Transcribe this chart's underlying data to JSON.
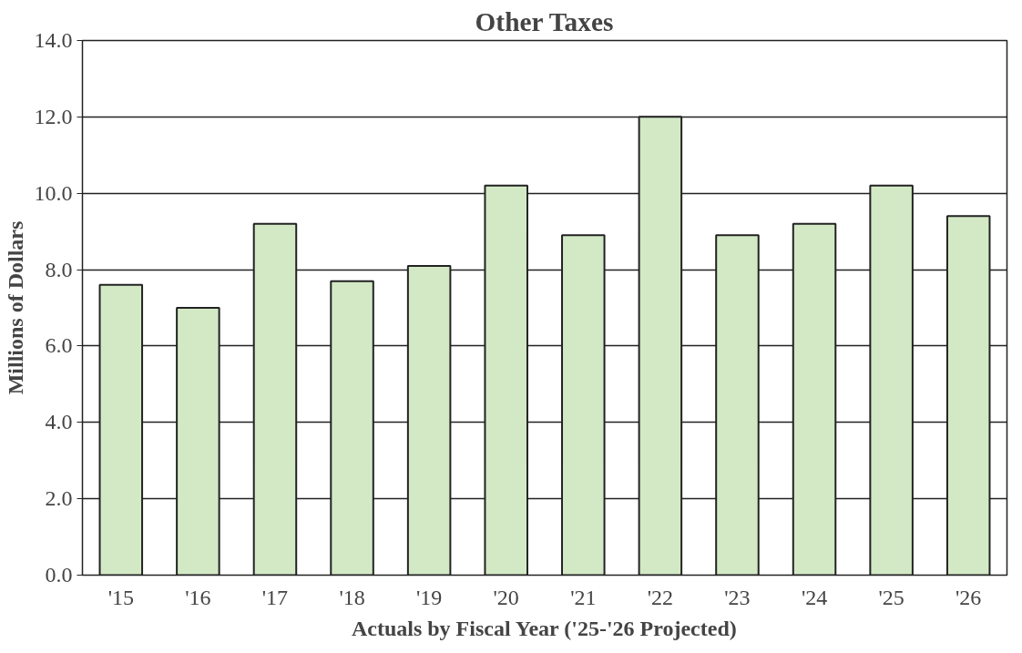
{
  "chart_data": {
    "type": "bar",
    "title": "Other Taxes",
    "xlabel": "Actuals by Fiscal Year ('25-'26 Projected)",
    "ylabel": "Millions of Dollars",
    "categories": [
      "'15",
      "'16",
      "'17",
      "'18",
      "'19",
      "'20",
      "'21",
      "'22",
      "'23",
      "'24",
      "'25",
      "'26"
    ],
    "values": [
      7.6,
      7.0,
      9.2,
      7.7,
      8.1,
      10.2,
      8.9,
      12.0,
      8.9,
      9.2,
      10.2,
      9.4
    ],
    "color": "#d3e9c6",
    "ylim": [
      0,
      14
    ],
    "yticks": [
      {
        "value": 0,
        "label": "0.0"
      },
      {
        "value": 2,
        "label": "2.0"
      },
      {
        "value": 4,
        "label": "4.0"
      },
      {
        "value": 6,
        "label": "6.0"
      },
      {
        "value": 8,
        "label": "8.0"
      },
      {
        "value": 10,
        "label": "10.0"
      },
      {
        "value": 12,
        "label": "12.0"
      },
      {
        "value": 14,
        "label": "14.0"
      }
    ],
    "grid": "y"
  }
}
